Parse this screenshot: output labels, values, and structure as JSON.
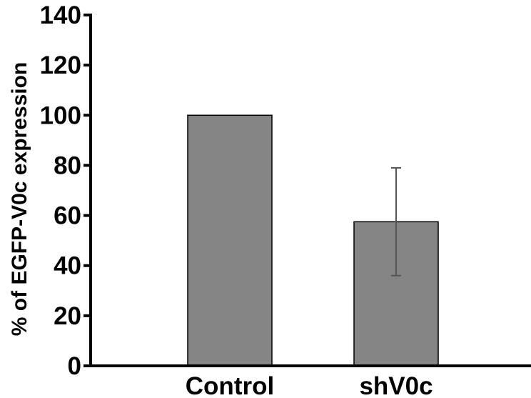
{
  "chart_data": {
    "type": "bar",
    "title": "",
    "xlabel": "",
    "ylabel": "% of EGFP-V0c expression",
    "categories": [
      "Control",
      "shV0c"
    ],
    "values": [
      100,
      57.5
    ],
    "error": [
      null,
      21.5
    ],
    "ylim": [
      0,
      140
    ],
    "yticks": [
      0,
      20,
      40,
      60,
      80,
      100,
      120,
      140
    ],
    "grid": false,
    "legend": "none",
    "colors": {
      "bar": "#858585",
      "axis": "#000000",
      "error_bar": "#555555"
    }
  }
}
